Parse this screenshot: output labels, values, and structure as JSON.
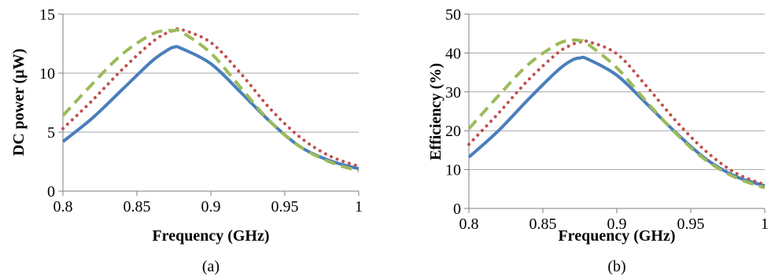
{
  "chart_data": [
    {
      "type": "line",
      "caption": "(a)",
      "xlabel": "Frequency (GHz)",
      "ylabel": "DC power (μW)",
      "xlim": [
        0.8,
        1.0
      ],
      "ylim": [
        0,
        15
      ],
      "xticks": [
        "0.8",
        "0.85",
        "0.9",
        "0.95",
        "1"
      ],
      "yticks": [
        "0",
        "5",
        "10",
        "15"
      ],
      "grid": "horizontal",
      "legend": "none",
      "x": [
        0.8,
        0.82,
        0.84,
        0.86,
        0.87,
        0.875,
        0.88,
        0.9,
        0.92,
        0.94,
        0.96,
        0.98,
        1.0
      ],
      "series": [
        {
          "color": "#4a7ebb",
          "dash": "solid",
          "values": [
            4.2,
            6.2,
            8.6,
            11.0,
            11.9,
            12.2,
            12.1,
            10.8,
            8.4,
            5.9,
            3.8,
            2.6,
            1.9
          ]
        },
        {
          "color": "#c0504d",
          "dash": "dotted",
          "values": [
            5.3,
            7.7,
            10.3,
            12.6,
            13.4,
            13.6,
            13.7,
            12.6,
            10.0,
            7.0,
            4.6,
            3.0,
            2.1
          ]
        },
        {
          "color": "#9bbb59",
          "dash": "dashed",
          "values": [
            6.4,
            9.1,
            11.6,
            13.3,
            13.6,
            13.6,
            13.5,
            11.7,
            8.8,
            5.9,
            3.8,
            2.5,
            1.7
          ]
        }
      ]
    },
    {
      "type": "line",
      "caption": "(b)",
      "xlabel": "Frequency (GHz)",
      "ylabel": "Efficiency (%)",
      "xlim": [
        0.8,
        1.0
      ],
      "ylim": [
        0,
        50
      ],
      "xticks": [
        "0.8",
        "0.85",
        "0.9",
        "0.95",
        "1"
      ],
      "yticks": [
        "0",
        "10",
        "20",
        "30",
        "40",
        "50"
      ],
      "grid": "horizontal",
      "legend": "none",
      "x": [
        0.8,
        0.82,
        0.84,
        0.86,
        0.87,
        0.875,
        0.88,
        0.9,
        0.92,
        0.94,
        0.96,
        0.98,
        1.0
      ],
      "series": [
        {
          "color": "#4a7ebb",
          "dash": "solid",
          "values": [
            13.2,
            20.0,
            28.0,
            35.5,
            38.2,
            38.7,
            38.5,
            34.3,
            27.0,
            19.5,
            12.8,
            8.3,
            5.8
          ]
        },
        {
          "color": "#c0504d",
          "dash": "dotted",
          "values": [
            16.5,
            24.5,
            33.0,
            40.0,
            42.2,
            42.8,
            43.0,
            39.8,
            31.5,
            22.5,
            14.8,
            9.2,
            6.1
          ]
        },
        {
          "color": "#9bbb59",
          "dash": "dashed",
          "values": [
            20.5,
            29.0,
            37.0,
            42.3,
            43.3,
            43.2,
            42.4,
            36.2,
            27.5,
            19.3,
            12.5,
            8.0,
            5.3
          ]
        }
      ]
    }
  ]
}
